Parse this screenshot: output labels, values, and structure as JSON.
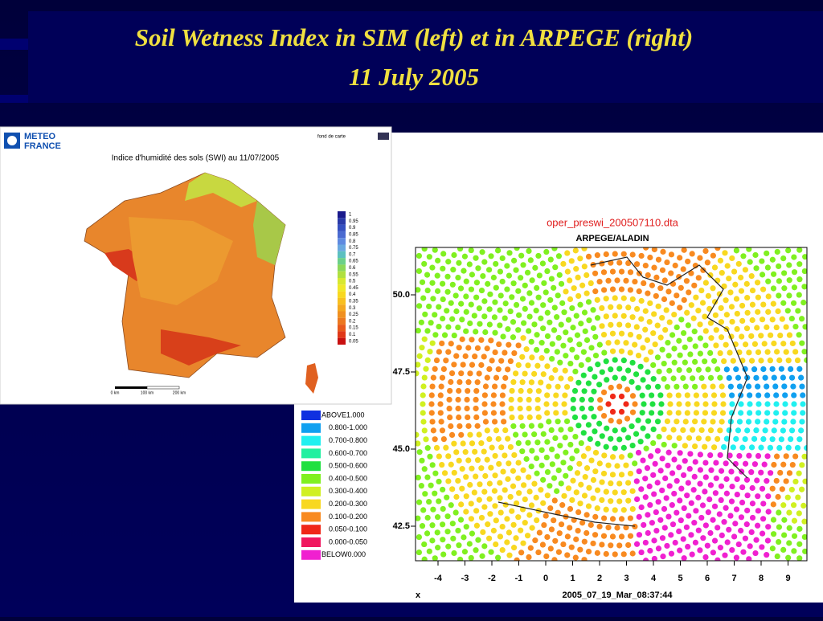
{
  "slide": {
    "title_line1": "Soil Wetness Index in SIM (left) et in ARPEGE (right)",
    "title_line2": "11 July 2005"
  },
  "left_map": {
    "logo_line1": "METEO",
    "logo_line2": "FRANCE",
    "corner_note": "fond de carte",
    "title": "Indice d'humidité des sols (SWI) au 11/07/2005",
    "legend": [
      {
        "label": "1",
        "color": "#1a1a8c"
      },
      {
        "label": "0.95",
        "color": "#2a3aa8"
      },
      {
        "label": "0.9",
        "color": "#3550c0"
      },
      {
        "label": "0.85",
        "color": "#4a6ad0"
      },
      {
        "label": "0.8",
        "color": "#5f8ae0"
      },
      {
        "label": "0.75",
        "color": "#6aa8e0"
      },
      {
        "label": "0.7",
        "color": "#5cc0c0"
      },
      {
        "label": "0.65",
        "color": "#6cd08a"
      },
      {
        "label": "0.6",
        "color": "#8cd85a"
      },
      {
        "label": "0.55",
        "color": "#b0e040"
      },
      {
        "label": "0.5",
        "color": "#d8e830"
      },
      {
        "label": "0.45",
        "color": "#f0e828"
      },
      {
        "label": "0.4",
        "color": "#f8d820"
      },
      {
        "label": "0.35",
        "color": "#f8c020"
      },
      {
        "label": "0.3",
        "color": "#f4a820"
      },
      {
        "label": "0.25",
        "color": "#f09020"
      },
      {
        "label": "0.2",
        "color": "#ec7820"
      },
      {
        "label": "0.15",
        "color": "#e85a1c"
      },
      {
        "label": "0.1",
        "color": "#e03818"
      },
      {
        "label": "0.05",
        "color": "#c81010"
      }
    ],
    "scale_labels": [
      "0 km",
      "100 km",
      "200 km"
    ]
  },
  "right_map": {
    "title": "oper_preswi_200507110.dta",
    "subtitle": "ARPEGE/ALADIN",
    "footer": "2005_07_19_Mar_08:37:44",
    "x_axis_label": "x",
    "yticks": [
      "50.0",
      "47.5",
      "45.0",
      "42.5"
    ],
    "xticks": [
      "-4",
      "-3",
      "-2",
      "-1",
      "0",
      "1",
      "2",
      "3",
      "4",
      "5",
      "6",
      "7",
      "8",
      "9"
    ],
    "legend": [
      {
        "label": "ABOVE1.000",
        "color": "#1030e0"
      },
      {
        "label": "0.800-1.000",
        "color": "#10a0f0"
      },
      {
        "label": "0.700-0.800",
        "color": "#20f0f0"
      },
      {
        "label": "0.600-0.700",
        "color": "#20f0a0"
      },
      {
        "label": "0.500-0.600",
        "color": "#20e040"
      },
      {
        "label": "0.400-0.500",
        "color": "#80f020"
      },
      {
        "label": "0.300-0.400",
        "color": "#d0f020"
      },
      {
        "label": "0.200-0.300",
        "color": "#f8d820"
      },
      {
        "label": "0.100-0.200",
        "color": "#f88a20"
      },
      {
        "label": "0.050-0.100",
        "color": "#f02818"
      },
      {
        "label": "0.000-0.050",
        "color": "#f01860"
      },
      {
        "label": "BELOW0.000",
        "color": "#f020d0"
      }
    ]
  }
}
